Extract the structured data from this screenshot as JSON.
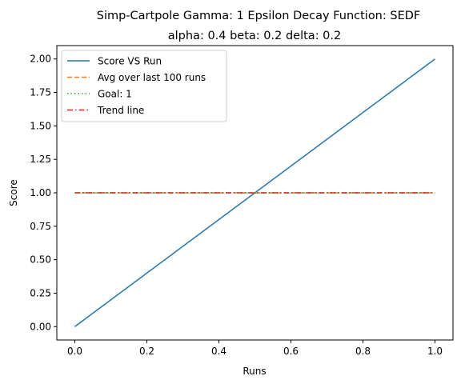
{
  "chart_data": {
    "type": "line",
    "title": "Simp-Cartpole Gamma: 1 Epsilon Decay Function: SEDF",
    "subtitle": "alpha: 0.4  beta: 0.2  delta: 0.2",
    "xlabel": "Runs",
    "ylabel": "Score",
    "xlim": [
      -0.05,
      1.05
    ],
    "ylim": [
      -0.1,
      2.1
    ],
    "xticks": [
      0.0,
      0.2,
      0.4,
      0.6,
      0.8,
      1.0
    ],
    "xtick_labels": [
      "0.0",
      "0.2",
      "0.4",
      "0.6",
      "0.8",
      "1.0"
    ],
    "yticks": [
      0.0,
      0.25,
      0.5,
      0.75,
      1.0,
      1.25,
      1.5,
      1.75,
      2.0
    ],
    "ytick_labels": [
      "0.00",
      "0.25",
      "0.50",
      "0.75",
      "1.00",
      "1.25",
      "1.50",
      "1.75",
      "2.00"
    ],
    "grid": false,
    "legend_position": "top-left",
    "series": [
      {
        "name": "Score VS Run",
        "x": [
          0,
          1
        ],
        "y": [
          0,
          2
        ],
        "color": "#1f77b4",
        "dash": "solid"
      },
      {
        "name": "Avg over last 100 runs",
        "x": [
          0,
          1
        ],
        "y": [
          1,
          1
        ],
        "color": "#ff7f0e",
        "dash": "dashed"
      },
      {
        "name": "Goal: 1",
        "x": [
          0,
          1
        ],
        "y": [
          1,
          1
        ],
        "color": "#2ca02c",
        "dash": "dotted"
      },
      {
        "name": "Trend line",
        "x": [
          0,
          1
        ],
        "y": [
          1,
          1
        ],
        "color": "#d62728",
        "dash": "dashdot"
      }
    ]
  }
}
